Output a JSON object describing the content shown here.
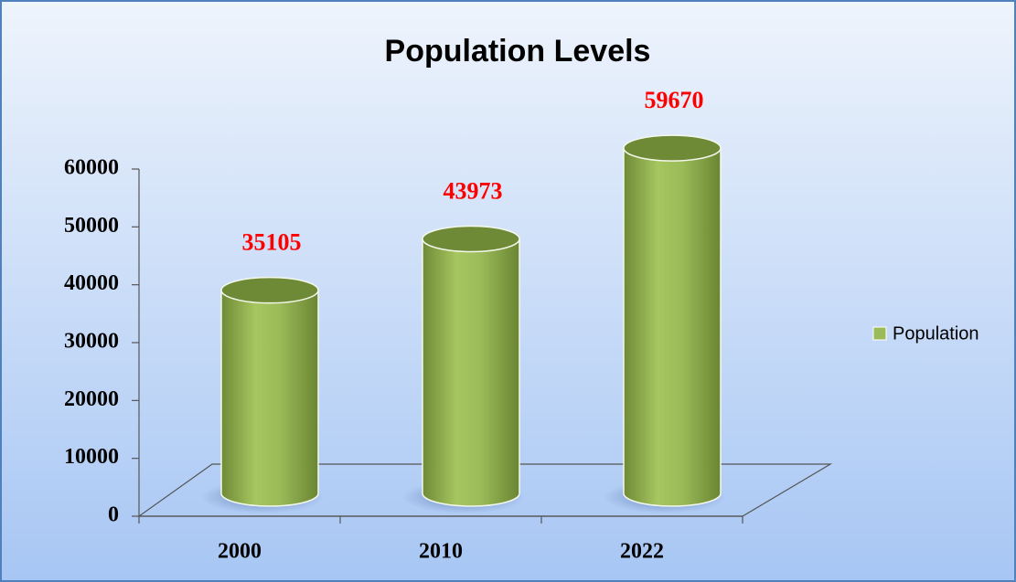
{
  "chart_data": {
    "type": "bar",
    "title": "Population Levels",
    "categories": [
      "2000",
      "2010",
      "2022"
    ],
    "series": [
      {
        "name": "Population",
        "color": "#9bbb59",
        "values": [
          35105,
          43973,
          59670
        ]
      }
    ],
    "ylim": [
      0,
      60000
    ],
    "yticks": [
      0,
      10000,
      20000,
      30000,
      40000,
      50000,
      60000
    ],
    "legend": "right"
  }
}
